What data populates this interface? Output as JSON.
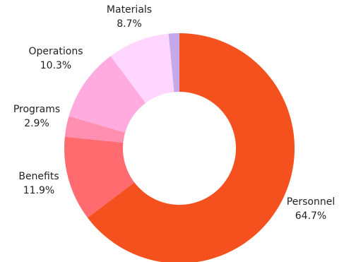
{
  "chart_data": {
    "type": "pie",
    "donut": true,
    "start_angle_deg": 0,
    "direction": "clockwise",
    "slices": [
      {
        "label": "Personnel",
        "value": 64.7,
        "value_text": "64.7%",
        "color": "#f4511e"
      },
      {
        "label": "Benefits",
        "value": 11.9,
        "value_text": "11.9%",
        "color": "#ff6b6f"
      },
      {
        "label": "Programs",
        "value": 2.9,
        "value_text": "2.9%",
        "color": "#ff8fb1"
      },
      {
        "label": "Operations",
        "value": 10.3,
        "value_text": "10.3%",
        "color": "#ffabe0"
      },
      {
        "label": "Materials",
        "value": 8.7,
        "value_text": "8.7%",
        "color": "#ffd6ff"
      },
      {
        "label": "",
        "value": 1.5,
        "value_text": "",
        "color": "#c5a9e8"
      }
    ]
  }
}
